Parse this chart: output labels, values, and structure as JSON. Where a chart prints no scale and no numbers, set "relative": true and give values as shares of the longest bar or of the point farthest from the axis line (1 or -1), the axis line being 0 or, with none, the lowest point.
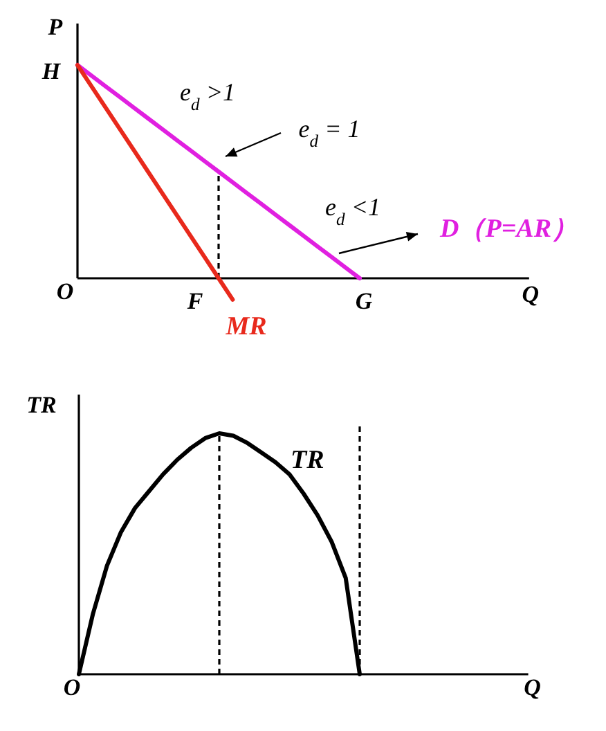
{
  "chart_data": [
    {
      "type": "line",
      "relative": true,
      "ylabel": "P",
      "xlabel": "Q",
      "categories": [
        null,
        null,
        null,
        null,
        null,
        null,
        null,
        null,
        null,
        null,
        null,
        null,
        null,
        null,
        null,
        null,
        null,
        null,
        null,
        null,
        null,
        null,
        null,
        null,
        null,
        null,
        null,
        null,
        null,
        null,
        null,
        null,
        null
      ],
      "series": [
        {
          "name": "D（P=AR）",
          "color": "#e020e0",
          "values": [
            1,
            0.95,
            0.9,
            0.85,
            0.8,
            0.75,
            0.7,
            0.65,
            0.6,
            0.55,
            0.5,
            0.45,
            0.4,
            0.35,
            0.3,
            0.25,
            0.2,
            0.15,
            0.1,
            0.05,
            0,
            null,
            null,
            null,
            null,
            null,
            null,
            null,
            null,
            null,
            null,
            null,
            null
          ]
        },
        {
          "name": "MR",
          "color": "#e8291c",
          "values": [
            1,
            0.9,
            0.8,
            0.7,
            0.6,
            0.5,
            0.4,
            0.3,
            0.2,
            0.1,
            0,
            -0.1,
            null,
            null,
            null,
            null,
            null,
            null,
            null,
            null,
            null,
            null,
            null,
            null,
            null,
            null,
            null,
            null,
            null,
            null,
            null,
            null,
            null
          ]
        }
      ],
      "annotations": [
        "H",
        "O",
        "F",
        "G",
        "e$_{d}$ >1",
        "e$_{d}$ = 1",
        "e$_{d}$ <1"
      ]
    },
    {
      "type": "line",
      "relative": true,
      "ylabel": "TR",
      "xlabel": "Q",
      "categories": [
        null,
        null,
        null,
        null,
        null,
        null,
        null,
        null,
        null,
        null,
        null,
        null,
        null,
        null,
        null,
        null,
        null,
        null,
        null,
        null,
        null,
        null,
        null,
        null,
        null,
        null,
        null,
        null,
        null,
        null,
        null,
        null,
        null
      ],
      "series": [
        {
          "name": "TR",
          "color": "#000000",
          "values": [
            0,
            0.25,
            0.45,
            0.59,
            0.69,
            0.76,
            0.83,
            0.89,
            0.94,
            0.98,
            1.0,
            0.99,
            0.96,
            0.92,
            0.88,
            0.83,
            0.75,
            0.66,
            0.55,
            0.4,
            0,
            null,
            null,
            null,
            null,
            null,
            null,
            null,
            null,
            null,
            null,
            null,
            null
          ]
        }
      ],
      "annotations": [
        "O"
      ]
    }
  ]
}
